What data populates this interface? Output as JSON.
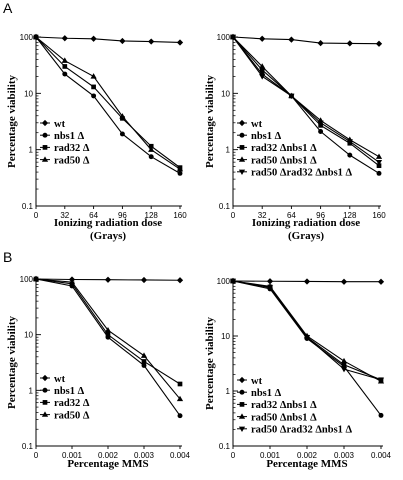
{
  "panel_labels": [
    "A",
    "B"
  ],
  "chart_data": [
    {
      "type": "line",
      "ylog": true,
      "ylim": [
        0.1,
        100
      ],
      "xlim": [
        0,
        160
      ],
      "xticks": [
        0,
        32,
        64,
        96,
        128,
        160
      ],
      "yticks": [
        0.1,
        1,
        10,
        100
      ],
      "xlabel": "Ionizing radiation dose",
      "xlabel2": "(Grays)",
      "ylabel": "Percentage viability",
      "legend_position": "bottom-left",
      "x": [
        0,
        32,
        64,
        96,
        128,
        160
      ],
      "series": [
        {
          "name": "wt",
          "marker": "diamond",
          "values": [
            100,
            95,
            93,
            85,
            83,
            80
          ]
        },
        {
          "name": "nbs1 Δ",
          "marker": "circle",
          "values": [
            100,
            22,
            9,
            1.9,
            0.75,
            0.38
          ]
        },
        {
          "name": "rad32 Δ",
          "marker": "square",
          "values": [
            100,
            30,
            13,
            3.6,
            1.15,
            0.48
          ]
        },
        {
          "name": "rad50 Δ",
          "marker": "triangle-up",
          "values": [
            100,
            38,
            20,
            3.9,
            1.0,
            0.45
          ]
        }
      ]
    },
    {
      "type": "line",
      "ylog": true,
      "ylim": [
        0.1,
        100
      ],
      "xlim": [
        0,
        160
      ],
      "xticks": [
        0,
        32,
        64,
        96,
        128,
        160
      ],
      "yticks": [
        0.1,
        1,
        10,
        100
      ],
      "xlabel": "Ionizing radiation dose",
      "xlabel2": "(Grays)",
      "ylabel": "Percentage viability",
      "legend_position": "bottom-left",
      "x": [
        0,
        32,
        64,
        96,
        128,
        160
      ],
      "series": [
        {
          "name": "wt",
          "marker": "diamond",
          "values": [
            100,
            93,
            90,
            78,
            77,
            76
          ]
        },
        {
          "name": "nbs1 Δ",
          "marker": "circle",
          "values": [
            100,
            22,
            9,
            2.1,
            0.8,
            0.38
          ]
        },
        {
          "name": "rad32 Δnbs1 Δ",
          "marker": "square",
          "values": [
            100,
            26,
            9,
            2.7,
            1.3,
            0.52
          ]
        },
        {
          "name": "rad50 Δnbs1 Δ",
          "marker": "triangle-up",
          "values": [
            100,
            30,
            9,
            3.3,
            1.5,
            0.75
          ]
        },
        {
          "name": "rad50 Δrad32 Δnbs1 Δ",
          "marker": "triangle-down",
          "values": [
            100,
            20,
            9,
            3.0,
            1.4,
            0.6
          ]
        }
      ]
    },
    {
      "type": "line",
      "ylog": true,
      "ylim": [
        0.1,
        100
      ],
      "xlim": [
        0,
        0.004
      ],
      "xticks": [
        0,
        0.001,
        0.002,
        0.003,
        0.004
      ],
      "yticks": [
        0.1,
        1,
        10,
        100
      ],
      "xlabel": "Percentage MMS",
      "ylabel": "Percentage viability",
      "legend_position": "bottom-left",
      "x": [
        0,
        0.001,
        0.002,
        0.003,
        0.004
      ],
      "series": [
        {
          "name": "wt",
          "marker": "diamond",
          "values": [
            100,
            98,
            97,
            96,
            95
          ]
        },
        {
          "name": "nbs1 Δ",
          "marker": "circle",
          "values": [
            100,
            75,
            9,
            2.8,
            0.35
          ]
        },
        {
          "name": "rad32 Δ",
          "marker": "square",
          "values": [
            100,
            82,
            10,
            3.3,
            1.3
          ]
        },
        {
          "name": "rad50 Δ",
          "marker": "triangle-up",
          "values": [
            100,
            88,
            12,
            4.2,
            0.7
          ]
        }
      ]
    },
    {
      "type": "line",
      "ylog": true,
      "ylim": [
        0.1,
        100
      ],
      "xlim": [
        0,
        0.004
      ],
      "xticks": [
        0,
        0.001,
        0.002,
        0.003,
        0.004
      ],
      "yticks": [
        0.1,
        1,
        10,
        100
      ],
      "xlabel": "Percentage MMS",
      "ylabel": "Percentage viability",
      "legend_position": "bottom-left",
      "x": [
        0,
        0.001,
        0.002,
        0.003,
        0.004
      ],
      "series": [
        {
          "name": "wt",
          "marker": "diamond",
          "values": [
            100,
            99,
            98,
            97,
            97
          ]
        },
        {
          "name": "nbs1 Δ",
          "marker": "circle",
          "values": [
            100,
            72,
            9,
            2.8,
            0.36
          ]
        },
        {
          "name": "rad32 Δnbs1 Δ",
          "marker": "square",
          "values": [
            100,
            78,
            9.5,
            3.0,
            1.6
          ]
        },
        {
          "name": "rad50 Δnbs1 Δ",
          "marker": "triangle-up",
          "values": [
            100,
            80,
            10,
            3.5,
            1.5
          ]
        },
        {
          "name": "rad50 Δrad32 Δnbs1 Δ",
          "marker": "triangle-down",
          "values": [
            100,
            76,
            9.5,
            2.5,
            1.6
          ]
        }
      ]
    }
  ]
}
